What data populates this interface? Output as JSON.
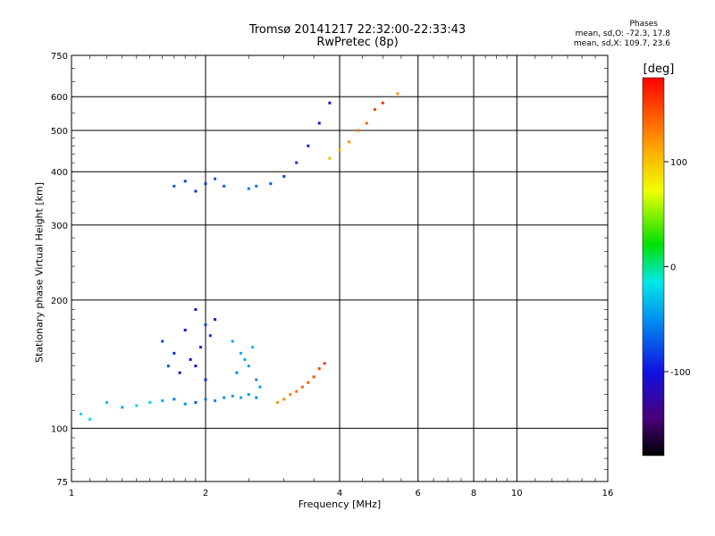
{
  "title": {
    "line1": "Tromsø 20141217 22:32:00-22:33:43",
    "line2": "RwPretec (8p)"
  },
  "stats": {
    "heading": "Phases",
    "o_line": "mean, sd,O: -72.3, 17.8",
    "x_line": "mean, sd,X: 109.7, 23.6"
  },
  "chart_data": {
    "type": "scatter",
    "title": "Tromsø 20141217 22:32:00-22:33:43",
    "subtitle": "RwPretec (8p)",
    "xlabel": "Frequency [MHz]",
    "ylabel": "Stationary phase Virtual Height [km]",
    "x_scale": "log",
    "y_scale": "log",
    "xlim": [
      1,
      16
    ],
    "ylim": [
      75,
      750
    ],
    "x_ticks": [
      1,
      2,
      4,
      6,
      8,
      10,
      16
    ],
    "x_tick_labels": [
      "1",
      "2",
      "4",
      "6",
      "8",
      "10",
      "16"
    ],
    "y_ticks": [
      75,
      100,
      200,
      300,
      400,
      500,
      600,
      750
    ],
    "y_tick_labels": [
      "75",
      "100",
      "200",
      "300",
      "400",
      "500",
      "600",
      "750"
    ],
    "grid": true,
    "colorbar": {
      "label": "[deg]",
      "range": [
        -180,
        180
      ],
      "ticks": [
        -100,
        0,
        100
      ],
      "tick_labels": [
        "-100",
        "0",
        "100"
      ],
      "colormap": "rainbow (black-purple-blue-cyan-green-yellow-red)"
    },
    "series": [
      {
        "type": "O-trace",
        "x": [
          1.05,
          1.1,
          1.2,
          1.3,
          1.4,
          1.5,
          1.6,
          1.7,
          1.8,
          1.9,
          2.0,
          2.1,
          2.2,
          2.3,
          2.4,
          2.5,
          2.6
        ],
        "y": [
          108,
          105,
          115,
          112,
          113,
          115,
          116,
          117,
          114,
          115,
          117,
          116,
          118,
          119,
          118,
          120,
          118
        ],
        "phase": [
          -20,
          -20,
          -30,
          -40,
          -20,
          -20,
          -40,
          -60,
          -50,
          -70,
          -60,
          -55,
          -50,
          -45,
          -40,
          -45,
          -50
        ]
      },
      {
        "type": "E-cluster",
        "x": [
          1.6,
          1.7,
          1.8,
          1.9,
          2.0,
          2.05,
          2.1,
          1.75,
          1.85,
          1.95,
          2.0,
          1.65,
          1.9
        ],
        "y": [
          160,
          150,
          170,
          140,
          130,
          165,
          180,
          135,
          145,
          155,
          175,
          140,
          190
        ],
        "phase": [
          -80,
          -90,
          -100,
          -110,
          -95,
          -85,
          -100,
          -120,
          -105,
          -90,
          -80,
          -75,
          -110
        ]
      },
      {
        "type": "E-cluster-2",
        "x": [
          2.3,
          2.4,
          2.5,
          2.6,
          2.55,
          2.45,
          2.35,
          2.65
        ],
        "y": [
          160,
          150,
          140,
          130,
          155,
          145,
          135,
          125
        ],
        "phase": [
          -40,
          -35,
          -45,
          -50,
          -30,
          -40,
          -55,
          -45
        ]
      },
      {
        "type": "X-trace",
        "x": [
          2.9,
          3.0,
          3.1,
          3.2,
          3.3,
          3.4,
          3.5,
          3.6,
          3.7
        ],
        "y": [
          115,
          117,
          120,
          122,
          125,
          128,
          132,
          138,
          142
        ],
        "phase": [
          120,
          125,
          130,
          135,
          140,
          145,
          150,
          155,
          160
        ]
      },
      {
        "type": "F-cluster",
        "x": [
          1.7,
          1.8,
          1.9,
          2.0,
          2.1,
          2.2,
          2.5,
          2.6,
          2.8,
          3.0,
          3.2,
          3.4,
          3.6,
          3.8
        ],
        "y": [
          370,
          380,
          360,
          375,
          385,
          370,
          365,
          370,
          375,
          390,
          420,
          460,
          520,
          580
        ],
        "phase": [
          -70,
          -80,
          -90,
          -85,
          -75,
          -70,
          -60,
          -65,
          -70,
          -80,
          -90,
          -95,
          -100,
          -110
        ]
      },
      {
        "type": "F-cluster-2",
        "x": [
          3.8,
          4.0,
          4.2,
          4.4,
          4.6,
          4.8,
          5.0,
          5.4
        ],
        "y": [
          430,
          450,
          470,
          500,
          520,
          560,
          580,
          610
        ],
        "phase": [
          100,
          110,
          120,
          130,
          140,
          150,
          160,
          120
        ]
      }
    ]
  }
}
